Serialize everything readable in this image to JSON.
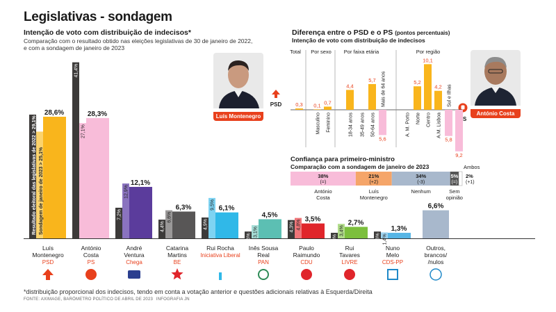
{
  "title": "Legislativas - sondagem",
  "left": {
    "subtitle": "Intenção de voto com distribuição de indecisos*",
    "note_line1": "Comparação com o resultado obtido nas eleições legislativas de 30 de janeiro de 2022,",
    "note_line2": "e com a sondagem de janeiro de 2023",
    "legend_result": "Resultado eleitoral das legislativas de 2022 > 29,1%",
    "legend_poll": "Sondagem de janeiro de 2023 > 25,1%"
  },
  "chart_data": [
    {
      "type": "bar",
      "title": "Intenção de voto com distribuição de indecisos*",
      "ylim": [
        0,
        42
      ],
      "series_names": [
        "Resultado eleitoral das legislativas de 2022",
        "Sondagem de janeiro de 2023",
        "Sondagem atual"
      ],
      "categories": [
        {
          "name1": "Luís",
          "name2": "Montenegro",
          "party": "PSD",
          "party_color": "#e8401c",
          "color": "#f9b51c",
          "light": "#fcd36c",
          "result": 29.1,
          "jan": 25.1,
          "current": 28.6,
          "result_label": "",
          "jan_label": "",
          "current_label": "28,6%",
          "symbol": "arrow"
        },
        {
          "name1": "António",
          "name2": "Costa",
          "party": "PS",
          "party_color": "#e8401c",
          "color": "#f8bcd9",
          "light": "#f8bcd9",
          "result": 41.4,
          "jan": 27.1,
          "current": 28.3,
          "result_label": "41,4%",
          "jan_label": "27,1%",
          "current_label": "28,3%",
          "symbol": "fist"
        },
        {
          "name1": "André",
          "name2": "Ventura",
          "party": "Chega",
          "party_color": "#e8401c",
          "color": "#5b3c9c",
          "light": "#8a73bf",
          "result": 7.2,
          "jan": 12.9,
          "current": 12.1,
          "result_label": "7,2%",
          "jan_label": "12,9%",
          "current_label": "12,1%",
          "symbol": "chega"
        },
        {
          "name1": "Catarina",
          "name2": "Martins",
          "party": "BE",
          "party_color": "#e8401c",
          "color": "#585656",
          "light": "#9a9898",
          "result": 4.4,
          "jan": 6.6,
          "current": 6.3,
          "result_label": "4,4%",
          "jan_label": "6,6%",
          "current_label": "6,3%",
          "symbol": "star"
        },
        {
          "name1": "Rui Rocha",
          "name2": "",
          "party": "Iniciativa Liberal",
          "party_color": "#e8401c",
          "color": "#30b8e8",
          "light": "#7ed3f2",
          "result": 4.9,
          "jan": 9.5,
          "current": 6.1,
          "result_label": "4,9%",
          "jan_label": "9,5%",
          "current_label": "6,1%",
          "symbol": "il"
        },
        {
          "name1": "Inês Sousa",
          "name2": "Real",
          "party": "PAN",
          "party_color": "#e8401c",
          "color": "#5cbfb3",
          "light": "#a6ddd6",
          "result": 1.6,
          "jan": 3.1,
          "current": 4.5,
          "result_label": "1,6%",
          "jan_label": "3,1%",
          "current_label": "4,5%",
          "symbol": "pan"
        },
        {
          "name1": "Paulo",
          "name2": "Raimundo",
          "party": "CDU",
          "party_color": "#e8401c",
          "color": "#e0252b",
          "light": "#ef7579",
          "result": 4.3,
          "jan": 4.8,
          "current": 3.5,
          "result_label": "4,3%",
          "jan_label": "4,8%",
          "current_label": "3,5%",
          "symbol": "cdu"
        },
        {
          "name1": "Rui",
          "name2": "Tavares",
          "party": "LIVRE",
          "party_color": "#e8401c",
          "color": "#7cbf3d",
          "light": "#b1dc8a",
          "result": 1.3,
          "jan": 3.4,
          "current": 2.7,
          "result_label": "1,3%",
          "jan_label": "3,4%",
          "current_label": "2,7%",
          "symbol": "livre"
        },
        {
          "name1": "Nuno",
          "name2": "Melo",
          "party": "CDS-PP",
          "party_color": "#e8401c",
          "color": "#56b5e5",
          "light": "#9ed3ef",
          "result": 1.6,
          "jan": 1.4,
          "current": 1.3,
          "result_label": "1,6%",
          "jan_label": "1,4%",
          "current_label": "1,3%",
          "symbol": "cds"
        },
        {
          "name1": "Outros,",
          "name2": "brancos/",
          "name3": "/nulos",
          "party": "",
          "party_color": "#e8401c",
          "color": "#a8b8cc",
          "light": "#a8b8cc",
          "result": null,
          "jan": null,
          "current": 6.6,
          "result_label": "",
          "jan_label": "",
          "current_label": "6,6%",
          "symbol": "circle"
        }
      ]
    },
    {
      "type": "bar",
      "title": "Diferença entre o PSD e o PS",
      "ylabel": "pontos percentuais",
      "ylim": [
        -9.2,
        10.1
      ],
      "groups": [
        "Total",
        "Por sexo",
        "Por faixa etária",
        "Por região"
      ],
      "bars": [
        {
          "group": "Total",
          "label": "",
          "value": 0.3,
          "value_label": "0,3"
        },
        {
          "group": "Por sexo",
          "label": "Masculino",
          "value": 0.1,
          "value_label": "0,1"
        },
        {
          "group": "Por sexo",
          "label": "Feminino",
          "value": 0.7,
          "value_label": "0,7"
        },
        {
          "group": "Por faixa etária",
          "label": "18-34 anos",
          "value": 4.4,
          "value_label": "4,4"
        },
        {
          "group": "Por faixa etária",
          "label": "35-49 anos",
          "value": 0,
          "value_label": "0"
        },
        {
          "group": "Por faixa etária",
          "label": "50-64 anos",
          "value": 5.7,
          "value_label": "5,7"
        },
        {
          "group": "Por faixa etária",
          "label": "Mais de 64 anos",
          "value": -5.6,
          "value_label": "5,6"
        },
        {
          "group": "Por região",
          "label": "A. M. Porto",
          "value": 0,
          "value_label": "0"
        },
        {
          "group": "Por região",
          "label": "Norte",
          "value": 5.2,
          "value_label": "5,2"
        },
        {
          "group": "Por região",
          "label": "Centro",
          "value": 10.1,
          "value_label": "10,1"
        },
        {
          "group": "Por região",
          "label": "A.M. Lisboa",
          "value": 4.2,
          "value_label": "4,2"
        },
        {
          "group": "Por região",
          "label": "Sul e Ilhas",
          "value": -5.8,
          "value_label": "5,8"
        },
        {
          "group": "Por região",
          "label": "",
          "value": -9.2,
          "value_label": "9,2"
        }
      ]
    },
    {
      "type": "bar",
      "title": "Confiança para primeiro-ministro",
      "subtitle": "Comparação com a sondagem de janeiro de 2023",
      "segments": [
        {
          "label1": "António",
          "label2": "Costa",
          "value": 38,
          "value_label": "38%",
          "change": "(=)",
          "color": "#f8bcd9"
        },
        {
          "label1": "Luís",
          "label2": "Montenegro",
          "value": 21,
          "value_label": "21%",
          "change": "(+2)",
          "color": "#f5a569"
        },
        {
          "label1": "Nenhum",
          "label2": "",
          "value": 34,
          "value_label": "34%",
          "change": "(-3)",
          "color": "#a8b8cc"
        },
        {
          "label1": "Sem",
          "label2": "opinião",
          "value": 5,
          "value_label": "5%",
          "change": "(=)",
          "color": "#555555"
        },
        {
          "label1": "Ambos",
          "label2": "",
          "value": 2,
          "value_label": "2%",
          "change": "(+1)",
          "color": "#ffffff"
        }
      ]
    }
  ],
  "right": {
    "title": "Diferença entre o PSD e o PS",
    "title_unit": "(pontos percentuais)",
    "subtitle": "Intenção de voto com distribuição de indecisos",
    "psd_label": "PSD",
    "ps_label": "PS",
    "photo_left_name": "Luís Montenegro",
    "photo_right_name": "António Costa"
  },
  "footnote": "*distribuição proporcional dos indecisos, tendo em conta a votação anterior e questões adicionais relativas à Esquerda/Direita",
  "source": "FONTE: AXIMAGE, BARÓMETRO POLÍTICO DE ABRIL DE 2023",
  "credit": "INFOGRAFIA JN",
  "colors": {
    "accent": "#e8401c",
    "dark": "#3c3a39",
    "psd": "#f9b51c",
    "ps": "#f8bcd9",
    "negative": "#f8bcd9"
  }
}
